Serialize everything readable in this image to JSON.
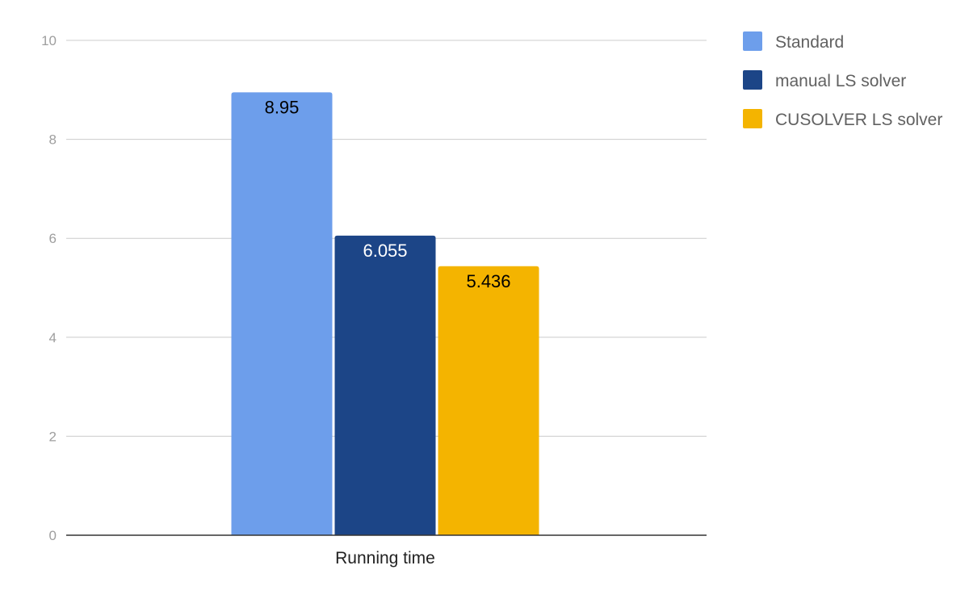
{
  "chart_data": {
    "type": "bar",
    "categories": [
      "Running time"
    ],
    "series": [
      {
        "name": "Standard",
        "values": [
          8.95
        ],
        "color": "#6d9eeb",
        "label_color": "#000000"
      },
      {
        "name": "manual LS solver",
        "values": [
          6.055
        ],
        "color": "#1c4587",
        "label_color": "#ffffff"
      },
      {
        "name": "CUSOLVER LS solver",
        "values": [
          5.436
        ],
        "color": "#f4b400",
        "label_color": "#000000"
      }
    ],
    "data_labels": [
      "8.95",
      "6.055",
      "5.436"
    ],
    "yticks": [
      "0",
      "2",
      "4",
      "6",
      "8",
      "10"
    ],
    "ylim": [
      0,
      10
    ],
    "grid": true,
    "legend": "right",
    "gridline_color": "#cccccc",
    "axis_color": "#333333"
  }
}
